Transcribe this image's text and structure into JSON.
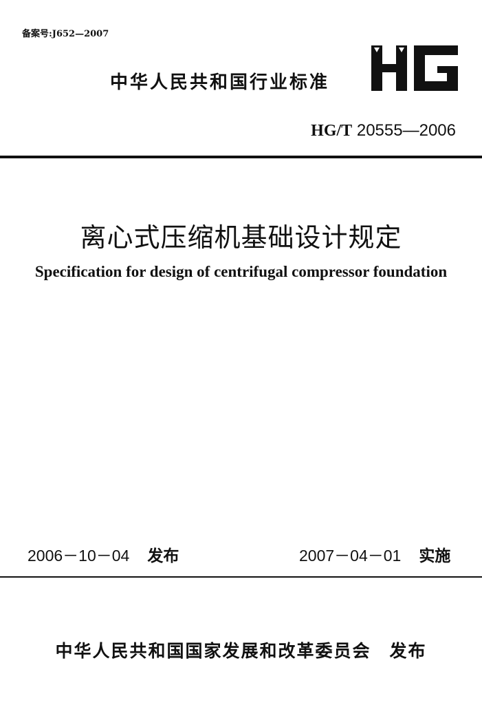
{
  "record_number": "备案号:J652—2007",
  "industry_standard": "中华人民共和国行业标准",
  "logo_text": "HG",
  "standard_code_prefix": "HG/T",
  "standard_code_number": "20555—2006",
  "title_cn": "离心式压缩机基础设计规定",
  "title_en": "Specification for design of centrifugal compressor foundation",
  "issue": {
    "date": "2006－10－04",
    "label": "发布"
  },
  "implementation": {
    "date": "2007－04－01",
    "label": "实施"
  },
  "publisher": "中华人民共和国国家发展和改革委员会　发布"
}
